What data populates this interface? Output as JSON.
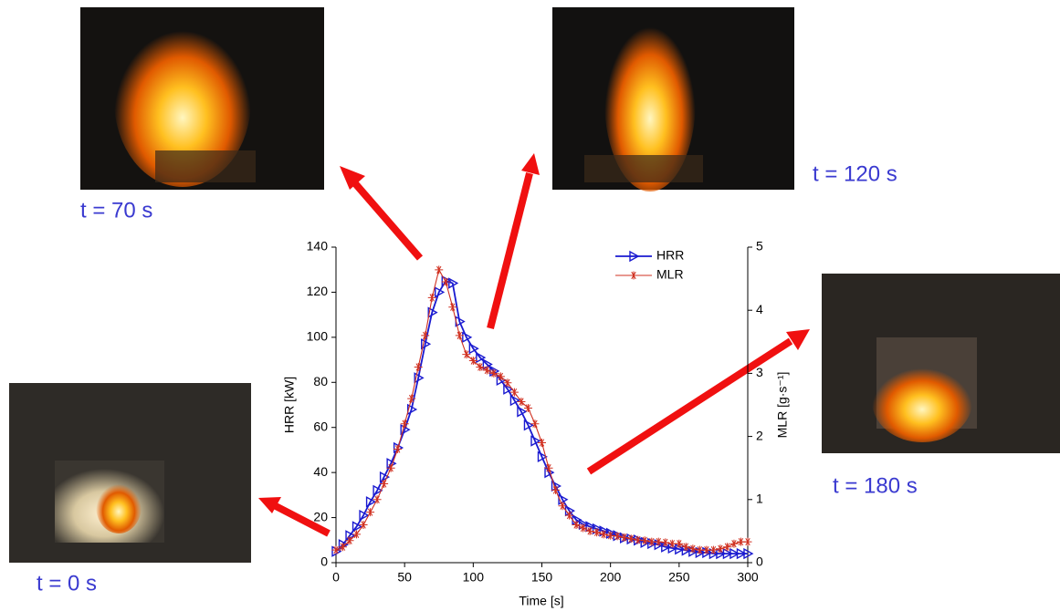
{
  "captions": {
    "t70": "t = 70 s",
    "t120": "t = 120 s",
    "t180": "t = 180 s",
    "t0": "t = 0 s"
  },
  "chart_data": {
    "type": "line",
    "x_label": "Time [s]",
    "y_label": "HRR [kW]",
    "y2_label": "MLR [g·s⁻¹]",
    "x": [
      0,
      5,
      10,
      15,
      20,
      25,
      30,
      35,
      40,
      45,
      50,
      55,
      60,
      65,
      70,
      75,
      80,
      85,
      90,
      95,
      100,
      105,
      110,
      115,
      120,
      125,
      130,
      135,
      140,
      145,
      150,
      155,
      160,
      165,
      170,
      175,
      180,
      185,
      190,
      195,
      200,
      205,
      210,
      215,
      220,
      225,
      230,
      235,
      240,
      245,
      250,
      255,
      260,
      265,
      270,
      275,
      280,
      285,
      290,
      295,
      300
    ],
    "series": [
      {
        "name": "HRR",
        "color": "#1a1ad0",
        "marker": "triangle-right",
        "axis": "y",
        "values": [
          5,
          8,
          12,
          16,
          21,
          27,
          32,
          38,
          44,
          51,
          59,
          68,
          82,
          97,
          111,
          120,
          125,
          124,
          107,
          100,
          95,
          91,
          88,
          85,
          81,
          77,
          72,
          67,
          61,
          54,
          47,
          40,
          34,
          28,
          23,
          19,
          17,
          16,
          15,
          14,
          13,
          12,
          11,
          10.5,
          10,
          9,
          8.5,
          8,
          7,
          6.5,
          6,
          5.5,
          5,
          4.5,
          4.5,
          4,
          4,
          4,
          4,
          4,
          4
        ]
      },
      {
        "name": "MLR",
        "color": "#d03020",
        "marker": "star",
        "axis": "y2",
        "values": [
          0.2,
          0.25,
          0.35,
          0.45,
          0.6,
          0.8,
          1.0,
          1.25,
          1.5,
          1.8,
          2.2,
          2.6,
          3.1,
          3.6,
          4.2,
          4.64,
          4.45,
          4.05,
          3.6,
          3.3,
          3.2,
          3.1,
          3.05,
          3.0,
          2.95,
          2.85,
          2.7,
          2.55,
          2.45,
          2.2,
          1.9,
          1.5,
          1.15,
          0.9,
          0.75,
          0.6,
          0.55,
          0.5,
          0.48,
          0.45,
          0.43,
          0.42,
          0.4,
          0.38,
          0.36,
          0.35,
          0.33,
          0.33,
          0.32,
          0.3,
          0.3,
          0.25,
          0.22,
          0.2,
          0.2,
          0.2,
          0.22,
          0.25,
          0.3,
          0.33,
          0.33
        ]
      }
    ],
    "xlim": [
      0,
      300
    ],
    "xticks": [
      0,
      50,
      100,
      150,
      200,
      250,
      300
    ],
    "ylim": [
      0,
      140
    ],
    "yticks": [
      0,
      20,
      40,
      60,
      80,
      100,
      120,
      140
    ],
    "y2lim": [
      0,
      5
    ],
    "y2ticks": [
      0,
      1,
      2,
      3,
      4,
      5
    ],
    "legend": "upper right"
  }
}
